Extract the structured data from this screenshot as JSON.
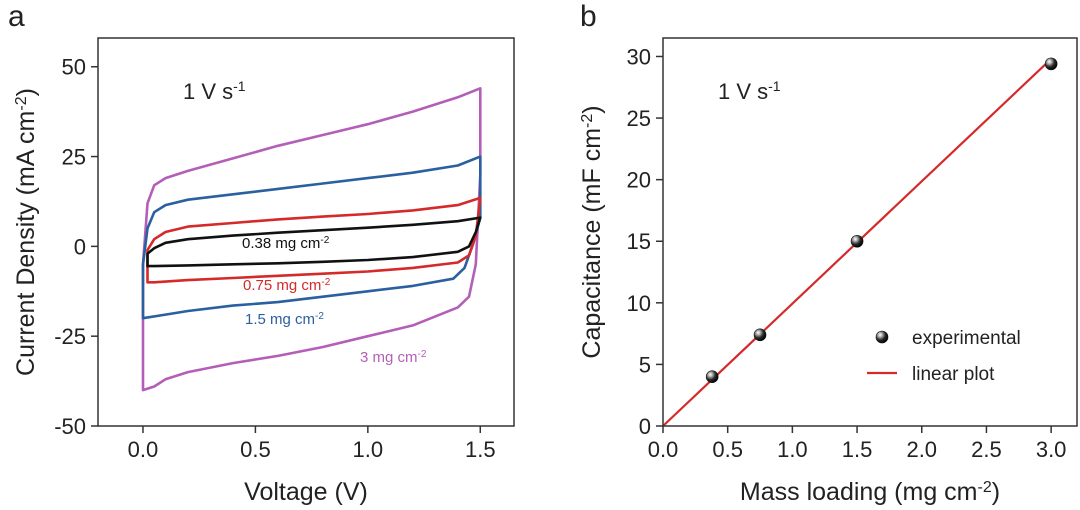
{
  "chart_data": [
    {
      "panel": "a",
      "type": "line",
      "xlabel": "Voltage (V)",
      "ylabel": {
        "main": "Current Density (mA cm",
        "sup": "-2",
        "end": ")"
      },
      "xlim": [
        -0.2,
        1.65
      ],
      "ylim": [
        -50,
        58
      ],
      "xticks": [
        {
          "value": 0.0,
          "label": "0.0"
        },
        {
          "value": 0.5,
          "label": "0.5"
        },
        {
          "value": 1.0,
          "label": "1.0"
        },
        {
          "value": 1.5,
          "label": "1.5"
        }
      ],
      "yticks": [
        {
          "value": 50,
          "label": "50"
        },
        {
          "value": 25,
          "label": "25"
        },
        {
          "value": 0,
          "label": "0"
        },
        {
          "value": -25,
          "label": "-25"
        },
        {
          "value": -50,
          "label": "-50"
        }
      ],
      "annotation": {
        "main": "1 V s",
        "sup": "-1"
      },
      "series": [
        {
          "name": "3 mg cm-2",
          "label_main": "3 mg cm",
          "label_sup": "-2",
          "color": "#b35fb8",
          "anodic": [
            [
              0.0,
              -5
            ],
            [
              0.02,
              12
            ],
            [
              0.05,
              17
            ],
            [
              0.1,
              19
            ],
            [
              0.2,
              21
            ],
            [
              0.4,
              24.5
            ],
            [
              0.6,
              28
            ],
            [
              0.8,
              31
            ],
            [
              1.0,
              34
            ],
            [
              1.2,
              37.5
            ],
            [
              1.4,
              41.5
            ],
            [
              1.5,
              44
            ]
          ],
          "cathodic": [
            [
              1.5,
              44
            ],
            [
              1.5,
              20
            ],
            [
              1.48,
              -5
            ],
            [
              1.45,
              -14
            ],
            [
              1.4,
              -17
            ],
            [
              1.2,
              -22
            ],
            [
              1.0,
              -25
            ],
            [
              0.8,
              -28
            ],
            [
              0.6,
              -30.5
            ],
            [
              0.4,
              -32.5
            ],
            [
              0.2,
              -35
            ],
            [
              0.1,
              -37
            ],
            [
              0.05,
              -39
            ],
            [
              0.0,
              -40
            ],
            [
              0.0,
              -5
            ]
          ]
        },
        {
          "name": "1.5 mg cm-2",
          "label_main": "1.5 mg cm",
          "label_sup": "-2",
          "color": "#2a5fa0",
          "anodic": [
            [
              0.0,
              -5
            ],
            [
              0.02,
              5
            ],
            [
              0.05,
              9.5
            ],
            [
              0.1,
              11.5
            ],
            [
              0.2,
              13
            ],
            [
              0.4,
              14.5
            ],
            [
              0.6,
              16
            ],
            [
              0.8,
              17.5
            ],
            [
              1.0,
              19
            ],
            [
              1.2,
              20.5
            ],
            [
              1.4,
              22.5
            ],
            [
              1.5,
              25
            ]
          ],
          "cathodic": [
            [
              1.5,
              25
            ],
            [
              1.5,
              8
            ],
            [
              1.47,
              1
            ],
            [
              1.43,
              -6
            ],
            [
              1.38,
              -9
            ],
            [
              1.2,
              -11
            ],
            [
              1.0,
              -12.5
            ],
            [
              0.8,
              -14
            ],
            [
              0.6,
              -15.5
            ],
            [
              0.4,
              -16.5
            ],
            [
              0.2,
              -18
            ],
            [
              0.1,
              -19
            ],
            [
              0.0,
              -20
            ],
            [
              0.0,
              -5
            ]
          ]
        },
        {
          "name": "0.75 mg cm-2",
          "label_main": "0.75 mg cm",
          "label_sup": "-2",
          "color": "#d42a2a",
          "anodic": [
            [
              0.02,
              -1
            ],
            [
              0.05,
              2
            ],
            [
              0.1,
              4
            ],
            [
              0.2,
              5.5
            ],
            [
              0.4,
              6.5
            ],
            [
              0.6,
              7.5
            ],
            [
              0.8,
              8.3
            ],
            [
              1.0,
              9
            ],
            [
              1.2,
              10
            ],
            [
              1.4,
              11.5
            ],
            [
              1.5,
              13.5
            ]
          ],
          "cathodic": [
            [
              1.5,
              13.5
            ],
            [
              1.48,
              3
            ],
            [
              1.45,
              -2.5
            ],
            [
              1.4,
              -4.5
            ],
            [
              1.2,
              -6
            ],
            [
              1.0,
              -7
            ],
            [
              0.8,
              -7.6
            ],
            [
              0.6,
              -8.2
            ],
            [
              0.4,
              -8.8
            ],
            [
              0.2,
              -9.4
            ],
            [
              0.05,
              -10
            ],
            [
              0.02,
              -10
            ],
            [
              0.02,
              -1
            ]
          ]
        },
        {
          "name": "0.38 mg cm-2",
          "label_main": "0.38 mg cm",
          "label_sup": "-2",
          "color": "#111111",
          "anodic": [
            [
              0.02,
              -2
            ],
            [
              0.05,
              -0.5
            ],
            [
              0.1,
              1
            ],
            [
              0.2,
              2
            ],
            [
              0.4,
              3
            ],
            [
              0.6,
              3.8
            ],
            [
              0.8,
              4.5
            ],
            [
              1.0,
              5.2
            ],
            [
              1.2,
              6
            ],
            [
              1.4,
              7
            ],
            [
              1.5,
              8
            ]
          ],
          "cathodic": [
            [
              1.5,
              8
            ],
            [
              1.48,
              4
            ],
            [
              1.45,
              0
            ],
            [
              1.4,
              -1.5
            ],
            [
              1.2,
              -3
            ],
            [
              1.0,
              -3.8
            ],
            [
              0.8,
              -4.3
            ],
            [
              0.6,
              -4.7
            ],
            [
              0.4,
              -5
            ],
            [
              0.2,
              -5.3
            ],
            [
              0.05,
              -5.5
            ],
            [
              0.02,
              -5.5
            ],
            [
              0.02,
              -2
            ]
          ]
        }
      ]
    },
    {
      "panel": "b",
      "type": "scatter",
      "xlabel": {
        "main": "Mass loading (mg cm",
        "sup": "-2",
        "end": ")"
      },
      "ylabel": {
        "main": "Capacitance (mF cm",
        "sup": "-2",
        "end": ")"
      },
      "xlim": [
        0,
        3.2
      ],
      "ylim": [
        0,
        31.5
      ],
      "xticks": [
        {
          "value": 0.0,
          "label": "0.0"
        },
        {
          "value": 0.5,
          "label": "0.5"
        },
        {
          "value": 1.0,
          "label": "1.0"
        },
        {
          "value": 1.5,
          "label": "1.5"
        },
        {
          "value": 2.0,
          "label": "2.0"
        },
        {
          "value": 2.5,
          "label": "2.5"
        },
        {
          "value": 3.0,
          "label": "3.0"
        }
      ],
      "yticks": [
        {
          "value": 0,
          "label": "0"
        },
        {
          "value": 5,
          "label": "5"
        },
        {
          "value": 10,
          "label": "10"
        },
        {
          "value": 15,
          "label": "15"
        },
        {
          "value": 20,
          "label": "20"
        },
        {
          "value": 25,
          "label": "25"
        },
        {
          "value": 30,
          "label": "30"
        }
      ],
      "annotation": {
        "main": "1 V s",
        "sup": "-1"
      },
      "legend": [
        "experimental",
        "linear plot"
      ],
      "series": [
        {
          "name": "experimental",
          "kind": "scatter",
          "color": "#222222",
          "points": [
            [
              0.38,
              4.0
            ],
            [
              0.75,
              7.4
            ],
            [
              1.5,
              15.0
            ],
            [
              3.0,
              29.4
            ]
          ]
        },
        {
          "name": "linear plot",
          "kind": "line",
          "color": "#d42a2a",
          "points": [
            [
              0.0,
              0.0
            ],
            [
              3.0,
              29.8
            ]
          ]
        }
      ]
    }
  ]
}
